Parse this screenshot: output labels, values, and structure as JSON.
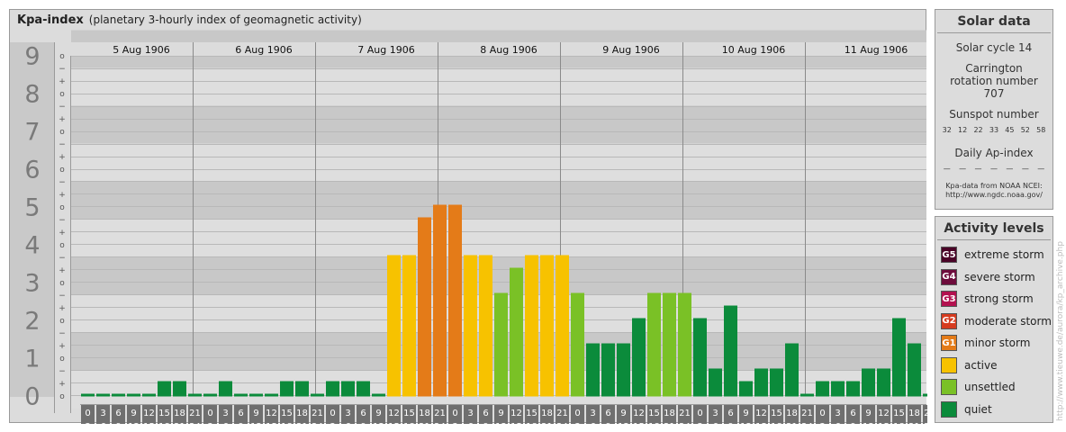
{
  "title": "Kpa-index",
  "subtitle": "(planetary 3-hourly index of geomagnetic activity)",
  "chart_data": {
    "type": "bar",
    "days": [
      "5 Aug 1906",
      "6 Aug 1906",
      "7 Aug 1906",
      "8 Aug 1906",
      "9 Aug 1906",
      "10 Aug 1906",
      "11 Aug 1906"
    ],
    "interval_start_labels": [
      "0",
      "3",
      "6",
      "9",
      "12",
      "15",
      "18",
      "21"
    ],
    "interval_end_labels": [
      "3",
      "6",
      "9",
      "12",
      "15",
      "18",
      "21",
      "24"
    ],
    "y_major_labels": [
      "0",
      "1",
      "2",
      "3",
      "4",
      "5",
      "6",
      "7",
      "8",
      "9"
    ],
    "y_minor_labels": [
      "+",
      "o",
      "−"
    ],
    "ylim": [
      0,
      9.33
    ],
    "values": [
      [
        0,
        0,
        0,
        0,
        0,
        0.333,
        0.333,
        0
      ],
      [
        0,
        0.333,
        0,
        0,
        0,
        0.333,
        0.333,
        0
      ],
      [
        0.333,
        0.333,
        0.333,
        0,
        3.667,
        3.667,
        4.667,
        5
      ],
      [
        5,
        3.667,
        3.667,
        2.667,
        3.333,
        3.667,
        3.667,
        3.667
      ],
      [
        2.667,
        1.333,
        1.333,
        1.333,
        2,
        2.667,
        2.667,
        2.667
      ],
      [
        2,
        0.667,
        2.333,
        0.333,
        0.667,
        0.667,
        1.333,
        0
      ],
      [
        0.333,
        0.333,
        0.333,
        0.667,
        0.667,
        2,
        1.333,
        0
      ]
    ]
  },
  "colors": {
    "quiet": "#0b8b3b",
    "unsettled": "#7ac126",
    "active": "#f7c200",
    "minor_storm": "#e47b18",
    "moderate_storm": "#d63b1f",
    "strong_storm": "#b3114f",
    "severe_storm": "#6e0c3c",
    "extreme_storm": "#4a0327"
  },
  "solar": {
    "heading": "Solar data",
    "cycle": "Solar cycle 14",
    "carrington": "Carrington rotation number 707",
    "sunspot_heading": "Sunspot number",
    "sunspots": [
      "32",
      "12",
      "22",
      "33",
      "45",
      "52",
      "58"
    ],
    "ap_heading": "Daily Ap-index",
    "ap_values": [
      "—",
      "—",
      "—",
      "—",
      "—",
      "—",
      "—"
    ],
    "source_line1": "Kpa-data from NOAA NCEI:",
    "source_line2": "http://www.ngdc.noaa.gov/"
  },
  "activity": {
    "heading": "Activity levels",
    "levels": [
      {
        "code": "G5",
        "label": "extreme storm",
        "color": "#4a0327"
      },
      {
        "code": "G4",
        "label": "severe storm",
        "color": "#6e0c3c"
      },
      {
        "code": "G3",
        "label": "strong storm",
        "color": "#b3114f"
      },
      {
        "code": "G2",
        "label": "moderate storm",
        "color": "#d63b1f"
      },
      {
        "code": "G1",
        "label": "minor storm",
        "color": "#e47b18"
      },
      {
        "code": "",
        "label": "active",
        "color": "#f7c200"
      },
      {
        "code": "",
        "label": "unsettled",
        "color": "#7ac126"
      },
      {
        "code": "",
        "label": "quiet",
        "color": "#0b8b3b"
      }
    ]
  },
  "watermark": "http://www.tieuwe.de/aurora/kp_archive.php"
}
